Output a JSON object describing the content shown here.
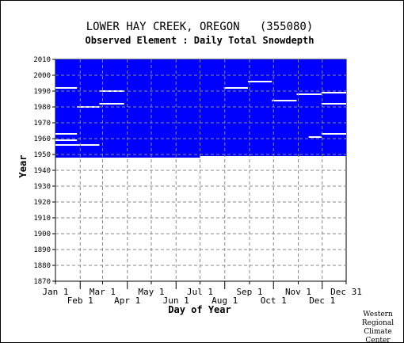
{
  "chart_data": {
    "type": "heatmap",
    "title": "LOWER HAY CREEK, OREGON   (355080)",
    "subtitle": "Observed Element : Daily Total Snowdepth",
    "xlabel": "Day of Year",
    "ylabel": "Year",
    "x_ticks_upper": [
      {
        "label": "Jan 1",
        "day": 1
      },
      {
        "label": "Mar 1",
        "day": 60
      },
      {
        "label": "May 1",
        "day": 121
      },
      {
        "label": "Jul 1",
        "day": 182
      },
      {
        "label": "Sep 1",
        "day": 244
      },
      {
        "label": "Nov 1",
        "day": 305
      },
      {
        "label": "Dec 31",
        "day": 365
      }
    ],
    "x_ticks_lower": [
      {
        "label": "Feb 1",
        "day": 32
      },
      {
        "label": "Apr 1",
        "day": 91
      },
      {
        "label": "Jun 1",
        "day": 152
      },
      {
        "label": "Aug 1",
        "day": 213
      },
      {
        "label": "Oct 1",
        "day": 274
      },
      {
        "label": "Dec 1",
        "day": 335
      }
    ],
    "y_ticks": [
      2010,
      2000,
      1990,
      1980,
      1970,
      1960,
      1950,
      1940,
      1930,
      1920,
      1910,
      1900,
      1890,
      1880,
      1870
    ],
    "xlim": [
      1,
      365
    ],
    "ylim": [
      1870,
      2010
    ],
    "data_color": "#0000ff",
    "blocks": [
      {
        "day_start": 1,
        "day_end": 182,
        "year_start": 1948,
        "year_end": 2010
      },
      {
        "day_start": 182,
        "day_end": 365,
        "year_start": 1949,
        "year_end": 2010
      }
    ],
    "gaps": [
      {
        "day_start": 1,
        "day_end": 28,
        "year": 1992
      },
      {
        "day_start": 28,
        "day_end": 56,
        "year": 1980
      },
      {
        "day_start": 56,
        "day_end": 87,
        "year": 1990
      },
      {
        "day_start": 56,
        "day_end": 87,
        "year": 1982
      },
      {
        "day_start": 1,
        "day_end": 28,
        "year": 1963
      },
      {
        "day_start": 1,
        "day_end": 28,
        "year": 1959
      },
      {
        "day_start": 1,
        "day_end": 56,
        "year": 1956
      },
      {
        "day_start": 212,
        "day_end": 242,
        "year": 1992
      },
      {
        "day_start": 242,
        "day_end": 272,
        "year": 1996
      },
      {
        "day_start": 272,
        "day_end": 303,
        "year": 1984
      },
      {
        "day_start": 303,
        "day_end": 334,
        "year": 1988
      },
      {
        "day_start": 334,
        "day_end": 365,
        "year": 1989
      },
      {
        "day_start": 334,
        "day_end": 365,
        "year": 1982
      },
      {
        "day_start": 334,
        "day_end": 365,
        "year": 1963
      },
      {
        "day_start": 318,
        "day_end": 334,
        "year": 1961
      }
    ]
  },
  "credit": [
    "Western",
    "Regional",
    "Climate",
    "Center"
  ]
}
